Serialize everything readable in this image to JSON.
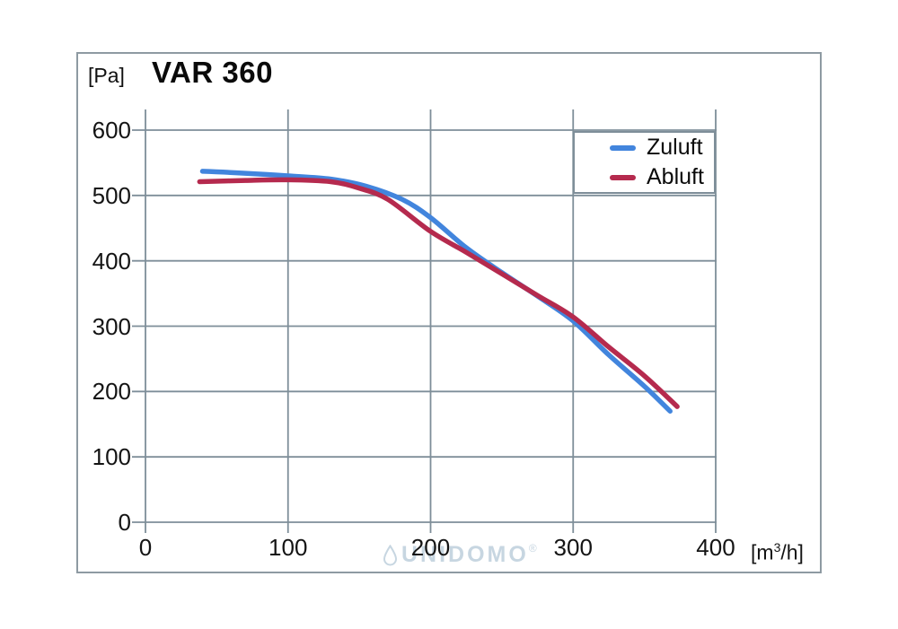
{
  "frame": {
    "title": "VAR 360",
    "y_unit": "[Pa]",
    "x_unit_pre": "[m",
    "x_unit_sup": "3",
    "x_unit_post": "/h]"
  },
  "watermark": {
    "text": "UNIDOMO",
    "reg": "®"
  },
  "colors": {
    "grid": "#7e8e99",
    "border": "#8e9aa2",
    "zuluft": "#4285dd",
    "abluft": "#b52a4e",
    "watermark": "#c7d6e1"
  },
  "chart_data": {
    "type": "line",
    "title": "VAR 360",
    "xlabel": "[m³/h]",
    "ylabel": "[Pa]",
    "xlim": [
      0,
      400
    ],
    "ylim": [
      0,
      600
    ],
    "xticks": [
      0,
      100,
      200,
      300,
      400
    ],
    "yticks": [
      0,
      100,
      200,
      300,
      400,
      500,
      600
    ],
    "grid": true,
    "legend_position": "top-right",
    "series": [
      {
        "name": "Zuluft",
        "color": "#4285dd",
        "x": [
          40,
          70,
          100,
          130,
          155,
          180,
          200,
          225,
          250,
          275,
          300,
          325,
          350,
          368
        ],
        "y": [
          537,
          534,
          530,
          525,
          514,
          494,
          466,
          420,
          382,
          346,
          308,
          256,
          208,
          170
        ]
      },
      {
        "name": "Abluft",
        "color": "#b52a4e",
        "x": [
          38,
          70,
          100,
          130,
          150,
          170,
          200,
          225,
          250,
          275,
          300,
          325,
          350,
          373
        ],
        "y": [
          521,
          523,
          524,
          521,
          511,
          494,
          445,
          413,
          380,
          347,
          314,
          268,
          224,
          177
        ]
      }
    ]
  }
}
